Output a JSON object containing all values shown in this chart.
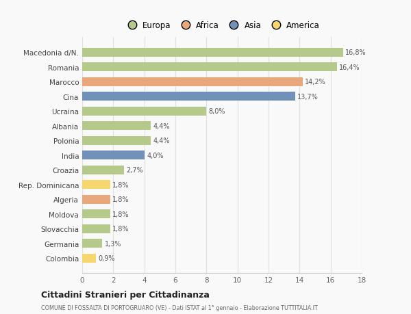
{
  "categories": [
    "Colombia",
    "Germania",
    "Slovacchia",
    "Moldova",
    "Algeria",
    "Rep. Dominicana",
    "Croazia",
    "India",
    "Polonia",
    "Albania",
    "Ucraina",
    "Cina",
    "Marocco",
    "Romania",
    "Macedonia d/N."
  ],
  "values": [
    0.9,
    1.3,
    1.8,
    1.8,
    1.8,
    1.8,
    2.7,
    4.0,
    4.4,
    4.4,
    8.0,
    13.7,
    14.2,
    16.4,
    16.8
  ],
  "labels": [
    "0,9%",
    "1,3%",
    "1,8%",
    "1,8%",
    "1,8%",
    "1,8%",
    "2,7%",
    "4,0%",
    "4,4%",
    "4,4%",
    "8,0%",
    "13,7%",
    "14,2%",
    "16,4%",
    "16,8%"
  ],
  "colors": [
    "#f5d76e",
    "#b5c98a",
    "#b5c98a",
    "#b5c98a",
    "#e8a87c",
    "#f5d76e",
    "#b5c98a",
    "#7191b8",
    "#b5c98a",
    "#b5c98a",
    "#b5c98a",
    "#7191b8",
    "#e8a87c",
    "#b5c98a",
    "#b5c98a"
  ],
  "legend_labels": [
    "Europa",
    "Africa",
    "Asia",
    "America"
  ],
  "legend_colors": [
    "#b5c98a",
    "#e8a87c",
    "#7191b8",
    "#f5d76e"
  ],
  "title": "Cittadini Stranieri per Cittadinanza",
  "subtitle": "COMUNE DI FOSSALTA DI PORTOGRUARO (VE) - Dati ISTAT al 1° gennaio - Elaborazione TUTTITALIA.IT",
  "xlim": [
    0,
    18
  ],
  "xticks": [
    0,
    2,
    4,
    6,
    8,
    10,
    12,
    14,
    16,
    18
  ],
  "background_color": "#f9f9f9",
  "bar_height": 0.6,
  "grid_color": "#e0e0e0"
}
